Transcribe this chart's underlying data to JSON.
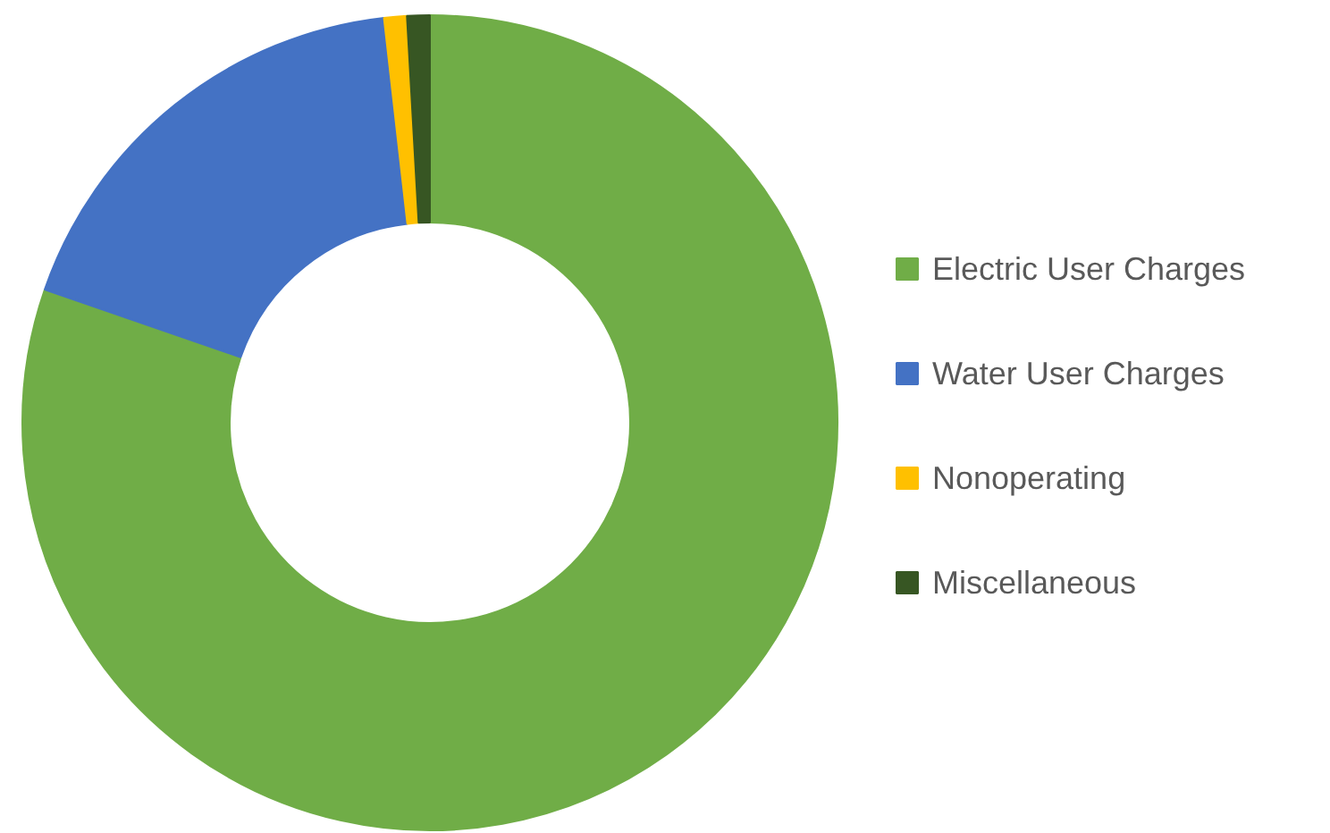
{
  "chart_data": {
    "type": "donut",
    "categories": [
      "Electric User Charges",
      "Water User Charges",
      "Nonoperating",
      "Miscellaneous"
    ],
    "values": [
      80.3,
      17.9,
      0.9,
      0.9
    ],
    "colors": [
      "#70ad47",
      "#4472c4",
      "#ffc000",
      "#375623"
    ],
    "legend": "right"
  }
}
